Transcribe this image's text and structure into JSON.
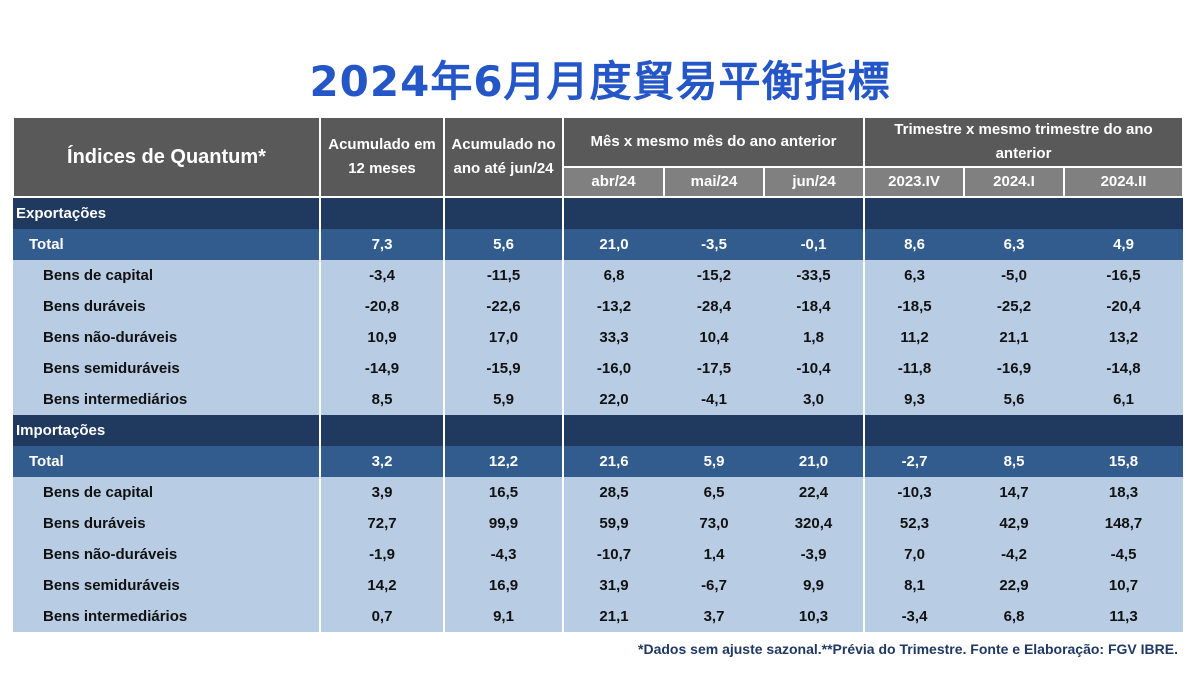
{
  "title": "2024年6月月度貿易平衡指標",
  "header": {
    "label": "Índices de Quantum*",
    "c1": "Acumulado em 12 meses",
    "c2": "Acumulado no ano até jun/24",
    "month_group": "Mês x mesmo mês do ano anterior",
    "quarter_group": "Trimestre x mesmo trimestre do ano anterior",
    "months": [
      "abr/24",
      "mai/24",
      "jun/24"
    ],
    "quarters": [
      "2023.IV",
      "2024.I",
      "2024.II"
    ]
  },
  "sections": [
    {
      "name": "Exportações",
      "total": {
        "label": "Total",
        "values": [
          "7,3",
          "5,6",
          "21,0",
          "-3,5",
          "-0,1",
          "8,6",
          "6,3",
          "4,9"
        ]
      },
      "rows": [
        {
          "label": "Bens de capital",
          "values": [
            "-3,4",
            "-11,5",
            "6,8",
            "-15,2",
            "-33,5",
            "6,3",
            "-5,0",
            "-16,5"
          ]
        },
        {
          "label": "Bens duráveis",
          "values": [
            "-20,8",
            "-22,6",
            "-13,2",
            "-28,4",
            "-18,4",
            "-18,5",
            "-25,2",
            "-20,4"
          ]
        },
        {
          "label": "Bens não-duráveis",
          "values": [
            "10,9",
            "17,0",
            "33,3",
            "10,4",
            "1,8",
            "11,2",
            "21,1",
            "13,2"
          ]
        },
        {
          "label": "Bens semiduráveis",
          "values": [
            "-14,9",
            "-15,9",
            "-16,0",
            "-17,5",
            "-10,4",
            "-11,8",
            "-16,9",
            "-14,8"
          ]
        },
        {
          "label": "Bens intermediários",
          "values": [
            "8,5",
            "5,9",
            "22,0",
            "-4,1",
            "3,0",
            "9,3",
            "5,6",
            "6,1"
          ]
        }
      ]
    },
    {
      "name": "Importações",
      "total": {
        "label": "Total",
        "values": [
          "3,2",
          "12,2",
          "21,6",
          "5,9",
          "21,0",
          "-2,7",
          "8,5",
          "15,8"
        ]
      },
      "rows": [
        {
          "label": "Bens de capital",
          "values": [
            "3,9",
            "16,5",
            "28,5",
            "6,5",
            "22,4",
            "-10,3",
            "14,7",
            "18,3"
          ]
        },
        {
          "label": "Bens duráveis",
          "values": [
            "72,7",
            "99,9",
            "59,9",
            "73,0",
            "320,4",
            "52,3",
            "42,9",
            "148,7"
          ]
        },
        {
          "label": "Bens não-duráveis",
          "values": [
            "-1,9",
            "-4,3",
            "-10,7",
            "1,4",
            "-3,9",
            "7,0",
            "-4,2",
            "-4,5"
          ]
        },
        {
          "label": "Bens semiduráveis",
          "values": [
            "14,2",
            "16,9",
            "31,9",
            "-6,7",
            "9,9",
            "8,1",
            "22,9",
            "10,7"
          ]
        },
        {
          "label": "Bens intermediários",
          "values": [
            "0,7",
            "9,1",
            "21,1",
            "3,7",
            "10,3",
            "-3,4",
            "6,8",
            "11,3"
          ]
        }
      ]
    }
  ],
  "footnote": "*Dados sem ajuste sazonal.**Prévia do Trimestre. Fonte e Elaboração: FGV IBRE."
}
